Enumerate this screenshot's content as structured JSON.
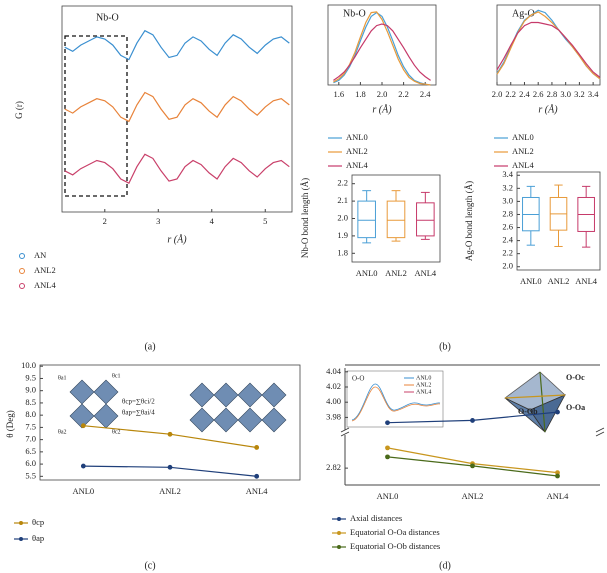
{
  "chart_data": [
    {
      "type": "line",
      "x_label": "r (Å)",
      "y_label": "G (r)",
      "annotation": "Nb-O",
      "x": [
        1.25,
        1.4,
        1.55,
        1.7,
        1.85,
        2.0,
        2.15,
        2.3,
        2.45,
        2.6,
        2.75,
        2.9,
        3.05,
        3.2,
        3.35,
        3.5,
        3.65,
        3.8,
        3.95,
        4.1,
        4.25,
        4.4,
        4.55,
        4.7,
        4.85,
        5.0,
        5.15,
        5.3,
        5.45
      ],
      "xlim": [
        1.2,
        5.5
      ],
      "xticks": [
        2,
        3,
        4,
        5
      ],
      "ylim": [
        0,
        10
      ],
      "series": [
        {
          "name": "AN",
          "color": "#3a8fd0",
          "values": [
            8.0,
            7.8,
            8.1,
            8.3,
            8.5,
            8.4,
            8.1,
            7.6,
            7.4,
            8.2,
            8.8,
            8.6,
            8.0,
            7.5,
            7.6,
            8.2,
            8.5,
            8.3,
            7.9,
            7.6,
            8.2,
            8.6,
            8.4,
            8.0,
            7.7,
            8.1,
            8.4,
            8.5,
            8.2
          ]
        },
        {
          "name": "ANL2",
          "color": "#e8833a",
          "values": [
            5.0,
            4.8,
            5.1,
            5.3,
            5.5,
            5.4,
            5.1,
            4.6,
            4.4,
            5.2,
            5.8,
            5.6,
            5.0,
            4.5,
            4.6,
            5.2,
            5.5,
            5.3,
            4.9,
            4.6,
            5.2,
            5.6,
            5.4,
            5.0,
            4.7,
            5.1,
            5.4,
            5.5,
            5.2
          ]
        },
        {
          "name": "ANL4",
          "color": "#c9406a",
          "values": [
            2.0,
            1.8,
            2.1,
            2.3,
            2.5,
            2.4,
            2.1,
            1.6,
            1.4,
            2.2,
            2.8,
            2.6,
            2.0,
            1.5,
            1.6,
            2.2,
            2.5,
            2.3,
            1.9,
            1.6,
            2.2,
            2.6,
            2.4,
            2.0,
            1.7,
            2.1,
            2.4,
            2.5,
            2.2
          ]
        }
      ]
    },
    {
      "type": "line",
      "x_label": "r (Å)",
      "annotation": "Nb-O",
      "x": [
        1.55,
        1.6,
        1.65,
        1.7,
        1.75,
        1.8,
        1.85,
        1.9,
        1.95,
        2.0,
        2.05,
        2.1,
        2.15,
        2.2,
        2.25,
        2.3,
        2.35,
        2.4,
        2.45
      ],
      "xlim": [
        1.5,
        2.5
      ],
      "xticks": [
        1.6,
        1.8,
        {
          "value": 2,
          "label": "2.0"
        },
        2.2,
        2.4
      ],
      "ylim": [
        0,
        1.05
      ],
      "series": [
        {
          "name": "ANL0",
          "color": "#4a9fd6",
          "values": [
            0.03,
            0.06,
            0.13,
            0.24,
            0.39,
            0.58,
            0.76,
            0.9,
            0.95,
            0.9,
            0.76,
            0.58,
            0.39,
            0.24,
            0.13,
            0.06,
            0.03,
            0.01,
            0
          ]
        },
        {
          "name": "ANL2",
          "color": "#e89a3a",
          "values": [
            0.04,
            0.08,
            0.15,
            0.27,
            0.43,
            0.63,
            0.82,
            0.95,
            0.96,
            0.86,
            0.7,
            0.52,
            0.34,
            0.2,
            0.1,
            0.05,
            0.02,
            0.01,
            0
          ]
        },
        {
          "name": "ANL4",
          "color": "#c63a6a",
          "values": [
            0.06,
            0.11,
            0.17,
            0.26,
            0.37,
            0.49,
            0.6,
            0.71,
            0.78,
            0.8,
            0.78,
            0.71,
            0.6,
            0.49,
            0.37,
            0.26,
            0.17,
            0.11,
            0.06
          ]
        }
      ]
    },
    {
      "type": "line",
      "x_label": "r (Å)",
      "annotation": "Ag-O",
      "x": [
        2.0,
        2.1,
        2.2,
        2.3,
        2.4,
        2.5,
        2.6,
        2.7,
        2.8,
        2.9,
        3.0,
        3.1,
        3.2,
        3.3,
        3.4,
        3.5
      ],
      "xlim": [
        2.0,
        3.5
      ],
      "xticks": [
        {
          "value": 2,
          "label": "2.0"
        },
        2.2,
        2.4,
        2.6,
        2.8,
        {
          "value": 3,
          "label": "3.0"
        },
        3.2,
        3.4
      ],
      "ylim": [
        0,
        1.05
      ],
      "series": [
        {
          "name": "ANL0",
          "color": "#4a9fd6",
          "values": [
            0.15,
            0.3,
            0.5,
            0.7,
            0.85,
            0.92,
            0.98,
            0.95,
            0.85,
            0.72,
            0.6,
            0.5,
            0.38,
            0.25,
            0.15,
            0.08
          ]
        },
        {
          "name": "ANL2",
          "color": "#e89a3a",
          "values": [
            0.14,
            0.28,
            0.48,
            0.68,
            0.84,
            0.92,
            0.96,
            0.9,
            0.82,
            0.72,
            0.62,
            0.5,
            0.38,
            0.25,
            0.15,
            0.08
          ]
        },
        {
          "name": "ANL4",
          "color": "#c63a6a",
          "values": [
            0.2,
            0.35,
            0.52,
            0.68,
            0.78,
            0.82,
            0.82,
            0.8,
            0.78,
            0.72,
            0.62,
            0.52,
            0.4,
            0.28,
            0.17,
            0.1
          ]
        }
      ]
    },
    {
      "type": "box",
      "y_label": "Nb-O bond length (Å)",
      "categories": [
        "ANL0",
        "ANL2",
        "ANL4"
      ],
      "colors": [
        "#4a9fd6",
        "#e89a3a",
        "#c63a6a"
      ],
      "ylim": [
        1.75,
        2.25
      ],
      "yticks": [
        1.8,
        1.9,
        {
          "value": 2,
          "label": "2.0"
        },
        2.1,
        2.2
      ],
      "boxes": [
        {
          "whislo": 1.86,
          "q1": 1.89,
          "med": 1.99,
          "q3": 2.1,
          "whishi": 2.16
        },
        {
          "whislo": 1.87,
          "q1": 1.89,
          "med": 1.99,
          "q3": 2.1,
          "whishi": 2.16
        },
        {
          "whislo": 1.88,
          "q1": 1.9,
          "med": 1.99,
          "q3": 2.09,
          "whishi": 2.15
        }
      ]
    },
    {
      "type": "box",
      "y_label": "Ag-O bond length (Å)",
      "categories": [
        "ANL0",
        "ANL2",
        "ANL4"
      ],
      "colors": [
        "#4a9fd6",
        "#e89a3a",
        "#c63a6a"
      ],
      "ylim": [
        1.95,
        3.45
      ],
      "yticks": [
        {
          "value": 2,
          "label": "2.0"
        },
        2.2,
        2.4,
        2.6,
        2.8,
        {
          "value": 3,
          "label": "3.0"
        },
        3.2,
        3.4
      ],
      "boxes": [
        {
          "whislo": 2.33,
          "q1": 2.55,
          "med": 2.8,
          "q3": 3.06,
          "whishi": 3.23
        },
        {
          "whislo": 2.31,
          "q1": 2.56,
          "med": 2.81,
          "q3": 3.06,
          "whishi": 3.25
        },
        {
          "whislo": 2.3,
          "q1": 2.54,
          "med": 2.8,
          "q3": 3.06,
          "whishi": 3.23
        }
      ]
    },
    {
      "type": "line",
      "y_label": "θ (Deg)",
      "categories": [
        "ANL0",
        "ANL2",
        "ANL4"
      ],
      "markers": true,
      "ylim": [
        5.35,
        10.05
      ],
      "yticks": [
        5.5,
        {
          "value": 6,
          "label": "6.0"
        },
        6.5,
        {
          "value": 7,
          "label": "7.0"
        },
        7.5,
        {
          "value": 8,
          "label": "8.0"
        },
        8.5,
        {
          "value": 9,
          "label": "9.0"
        },
        9.5,
        {
          "value": 10,
          "label": "10.0"
        }
      ],
      "formulas": [
        "θcp=∑θci/2",
        "θap=∑θai/4"
      ],
      "diagram_labels": [
        "θa1",
        "θc1",
        "θa2",
        "θc2"
      ],
      "series": [
        {
          "name": "θcp",
          "color": "#b8860b",
          "values": [
            7.57,
            7.22,
            6.68
          ]
        },
        {
          "name": "θap",
          "color": "#1f3f7a",
          "values": [
            5.92,
            5.87,
            5.5
          ]
        }
      ]
    },
    {
      "type": "line",
      "categories": [
        "ANL0",
        "ANL2",
        "ANL4"
      ],
      "markers": true,
      "ylim": [
        3.97,
        4.045
      ],
      "yticks": [
        3.98,
        {
          "value": 4,
          "label": "4.00"
        },
        4.02,
        4.04
      ],
      "y2lim": [
        2.805,
        2.845
      ],
      "y2ticks": [
        2.82
      ],
      "inset": {
        "title": "O-O",
        "legend": [
          "ANL0",
          "ANL2",
          "ANL4"
        ]
      },
      "octahedron_labels": [
        "O-Oc",
        "O-Oa",
        "O-Ob"
      ],
      "series": [
        {
          "name": "Axial distances",
          "color": "#1f3f7a",
          "values": [
            3.973,
            3.976,
            3.987
          ]
        },
        {
          "name": "Equatorial O-Oa distances",
          "color": "#c8961e",
          "axis": "y2",
          "values": [
            2.838,
            2.824,
            2.816
          ]
        },
        {
          "name": "Equatorial O-Ob distances",
          "color": "#4a6a1a",
          "axis": "y2",
          "values": [
            2.83,
            2.822,
            2.813
          ]
        }
      ]
    }
  ],
  "captions": [
    "(a)",
    "(b)",
    "(c)",
    "(d)"
  ]
}
